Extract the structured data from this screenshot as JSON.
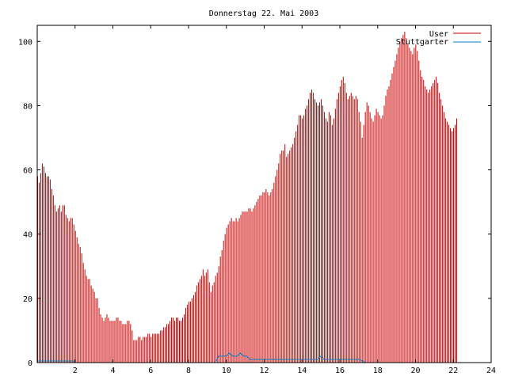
{
  "chart_data": {
    "type": "bar",
    "title": "Donnerstag 22. Mai 2003",
    "xlabel": "",
    "ylabel": "",
    "xlim": [
      0,
      24
    ],
    "ylim": [
      0,
      105
    ],
    "x_ticks": [
      2,
      4,
      6,
      8,
      10,
      12,
      14,
      16,
      18,
      20,
      22,
      24
    ],
    "y_ticks": [
      0,
      20,
      40,
      60,
      80,
      100
    ],
    "grid": false,
    "legend_position": "top-right",
    "series": [
      {
        "name": "User",
        "color": "#cc0000",
        "values": [
          58,
          56,
          59,
          62,
          61,
          59,
          58,
          58,
          57,
          54,
          52,
          49,
          47,
          48,
          49,
          47,
          49,
          49,
          46,
          45,
          44,
          45,
          45,
          43,
          41,
          39,
          37,
          36,
          34,
          31,
          29,
          27,
          26,
          26,
          24,
          23,
          22,
          20,
          20,
          17,
          15,
          14,
          13,
          14,
          15,
          14,
          13,
          13,
          13,
          13,
          14,
          14,
          13,
          13,
          12,
          12,
          12,
          13,
          13,
          12,
          10,
          7,
          7,
          7,
          8,
          8,
          7,
          8,
          8,
          8,
          9,
          9,
          8,
          9,
          9,
          9,
          9,
          9,
          10,
          10,
          11,
          11,
          12,
          12,
          13,
          14,
          14,
          13,
          14,
          14,
          13,
          13,
          14,
          15,
          17,
          18,
          19,
          19,
          20,
          21,
          22,
          24,
          25,
          26,
          27,
          29,
          27,
          28,
          29,
          25,
          22,
          24,
          25,
          27,
          28,
          30,
          33,
          35,
          38,
          40,
          42,
          43,
          44,
          45,
          44,
          44,
          45,
          44,
          45,
          46,
          47,
          47,
          47,
          47,
          48,
          48,
          47,
          48,
          49,
          50,
          51,
          52,
          52,
          53,
          53,
          54,
          53,
          52,
          53,
          54,
          56,
          58,
          60,
          62,
          65,
          66,
          66,
          68,
          64,
          65,
          66,
          67,
          68,
          70,
          72,
          74,
          77,
          77,
          76,
          77,
          79,
          80,
          82,
          84,
          85,
          84,
          82,
          81,
          80,
          81,
          82,
          80,
          78,
          76,
          75,
          78,
          77,
          74,
          76,
          79,
          82,
          84,
          86,
          88,
          89,
          87,
          84,
          82,
          83,
          84,
          83,
          82,
          83,
          82,
          78,
          75,
          70,
          74,
          78,
          81,
          80,
          78,
          76,
          75,
          77,
          79,
          78,
          77,
          76,
          77,
          80,
          83,
          85,
          86,
          88,
          90,
          92,
          94,
          96,
          98,
          100,
          101,
          102,
          103,
          101,
          99,
          98,
          97,
          96,
          98,
          99,
          97,
          94,
          91,
          89,
          88,
          86,
          85,
          84,
          85,
          86,
          87,
          88,
          89,
          87,
          84,
          82,
          80,
          78,
          76,
          75,
          74,
          73,
          72,
          73,
          74,
          76
        ]
      },
      {
        "name": "Stuttgarter",
        "color": "#0080c0",
        "values": [
          0.5,
          0.5,
          0.5,
          0.5,
          0.5,
          0.5,
          0.5,
          0.5,
          0.5,
          0.5,
          0.5,
          0.5,
          0.5,
          0.5,
          0.5,
          0.5,
          0.5,
          0.5,
          0.5,
          0.5,
          0.5,
          0.5,
          0.5,
          0.5,
          0,
          0,
          0,
          0,
          0,
          0,
          0,
          0,
          0,
          0,
          0,
          0,
          0,
          0,
          0,
          0,
          0,
          0,
          0,
          0,
          0,
          0,
          0,
          0,
          0,
          0,
          0,
          0,
          0,
          0,
          0,
          0,
          0,
          0,
          0,
          0,
          0,
          0,
          0,
          0,
          0,
          0,
          0,
          0,
          0,
          0,
          0,
          0,
          0,
          0,
          0,
          0,
          0,
          0,
          0,
          0,
          0,
          0,
          0,
          0,
          0,
          0,
          0,
          0,
          0,
          0,
          0,
          0,
          0,
          0,
          0,
          0,
          0,
          0,
          0,
          0,
          0,
          0,
          0,
          0,
          0,
          0,
          0,
          0,
          0,
          0,
          0,
          0,
          0,
          0,
          1,
          2,
          2,
          2,
          2,
          2,
          2,
          2.5,
          3,
          2.5,
          2,
          2,
          2,
          2,
          2.5,
          3,
          2.5,
          2,
          2,
          2,
          1.5,
          1,
          1,
          1,
          1,
          1,
          1,
          1,
          1,
          1,
          1,
          1,
          1,
          1,
          1,
          1,
          1,
          1,
          1,
          1,
          1,
          1,
          1,
          1,
          1,
          1,
          1,
          1,
          1,
          1,
          1,
          1,
          1,
          1,
          1,
          1,
          1,
          1,
          1,
          1,
          1,
          1,
          1,
          1,
          1,
          1.5,
          2,
          1.5,
          1,
          1,
          1,
          1,
          1,
          1,
          1,
          1,
          1,
          1,
          1,
          1,
          1,
          1,
          1,
          1,
          1,
          1,
          1,
          1,
          1,
          1,
          1,
          1,
          0.5,
          0.5,
          0,
          0,
          0,
          0,
          0,
          0,
          0,
          0,
          0,
          0,
          0,
          0,
          0,
          0,
          0,
          0,
          0,
          0,
          0,
          0,
          0,
          0,
          0,
          0,
          0,
          0,
          0,
          0,
          0,
          0,
          0,
          0,
          0,
          0,
          0,
          0,
          0,
          0,
          0,
          0,
          0,
          0,
          0,
          0,
          0,
          0,
          0,
          0,
          0,
          0,
          0,
          0,
          0,
          0,
          0,
          0,
          0,
          0,
          0
        ]
      }
    ],
    "sample_interval_hours": 0.0833
  }
}
